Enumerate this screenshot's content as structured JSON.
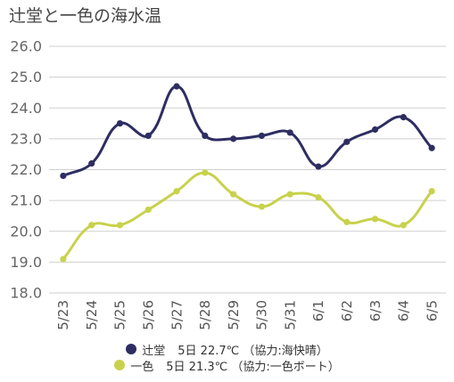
{
  "chart_data": {
    "type": "line",
    "title": "辻堂と一色の海水温",
    "categories": [
      "5/23",
      "5/24",
      "5/25",
      "5/26",
      "5/27",
      "5/28",
      "5/29",
      "5/30",
      "5/31",
      "6/1",
      "6/2",
      "6/3",
      "6/4",
      "6/5"
    ],
    "series": [
      {
        "name": "辻堂",
        "color": "#2e2d62",
        "values": [
          21.8,
          22.2,
          23.5,
          23.1,
          24.7,
          23.1,
          23.0,
          23.1,
          23.2,
          22.1,
          22.9,
          23.3,
          23.7,
          22.7
        ]
      },
      {
        "name": "一色",
        "color": "#c7d24c",
        "values": [
          19.1,
          20.2,
          20.2,
          20.7,
          21.3,
          21.9,
          21.2,
          20.8,
          21.2,
          21.1,
          20.3,
          20.4,
          20.2,
          21.3
        ]
      }
    ],
    "ylim": [
      18,
      26
    ],
    "yticks": [
      "18.0",
      "19.0",
      "20.0",
      "21.0",
      "22.0",
      "23.0",
      "24.0",
      "25.0",
      "26.0"
    ],
    "grid": true,
    "smooth": true,
    "legend_position": "bottom"
  },
  "legend": [
    {
      "detail": "5日 22.7℃ （協力:海快晴）"
    },
    {
      "detail": "5日 21.3℃ （協力:一色ボート）"
    }
  ]
}
